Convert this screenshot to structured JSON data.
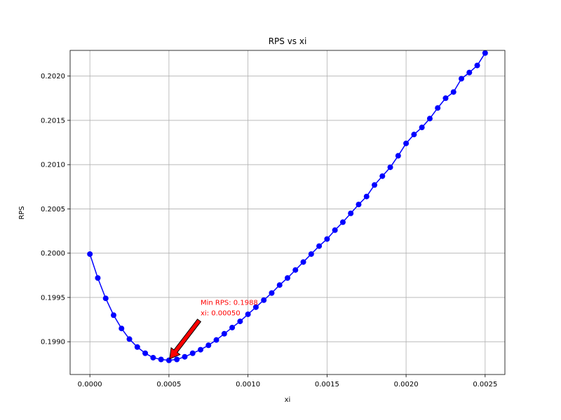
{
  "chart_data": {
    "type": "line",
    "title": "RPS vs xi",
    "xlabel": "xi",
    "ylabel": "RPS",
    "xlim": [
      -0.000125,
      0.002625
    ],
    "ylim": [
      0.19863,
      0.20229
    ],
    "xticks": [
      0.0,
      0.0005,
      0.001,
      0.0015,
      0.002,
      0.0025
    ],
    "xtick_labels": [
      "0.0000",
      "0.0005",
      "0.0010",
      "0.0015",
      "0.0020",
      "0.0025"
    ],
    "yticks": [
      0.199,
      0.1995,
      0.2,
      0.2005,
      0.201,
      0.2015,
      0.202
    ],
    "ytick_labels": [
      "0.1990",
      "0.1995",
      "0.2000",
      "0.2005",
      "0.2010",
      "0.2015",
      "0.2020"
    ],
    "grid": true,
    "series": [
      {
        "color": "#0000ff",
        "marker": "circle",
        "x": [
          0.0,
          5e-05,
          0.0001,
          0.00015,
          0.0002,
          0.00025,
          0.0003,
          0.00035,
          0.0004,
          0.00045,
          0.0005,
          0.00055,
          0.0006,
          0.00065,
          0.0007,
          0.00075,
          0.0008,
          0.00085,
          0.0009,
          0.00095,
          0.001,
          0.00105,
          0.0011,
          0.00115,
          0.0012,
          0.00125,
          0.0013,
          0.00135,
          0.0014,
          0.00145,
          0.0015,
          0.00155,
          0.0016,
          0.00165,
          0.0017,
          0.00175,
          0.0018,
          0.00185,
          0.0019,
          0.00195,
          0.002,
          0.00205,
          0.0021,
          0.00215,
          0.0022,
          0.00225,
          0.0023,
          0.00235,
          0.0024,
          0.00245,
          0.0025
        ],
        "y": [
          0.19999,
          0.19972,
          0.19949,
          0.1993,
          0.19915,
          0.19903,
          0.19894,
          0.19887,
          0.19882,
          0.1988,
          0.19879,
          0.1988,
          0.19883,
          0.19887,
          0.19891,
          0.19896,
          0.19902,
          0.19909,
          0.19916,
          0.19923,
          0.19931,
          0.19939,
          0.19947,
          0.19955,
          0.19964,
          0.19972,
          0.19981,
          0.1999,
          0.19999,
          0.20008,
          0.20016,
          0.20026,
          0.20035,
          0.20045,
          0.20055,
          0.20064,
          0.20077,
          0.20087,
          0.20097,
          0.2011,
          0.20124,
          0.20134,
          0.20142,
          0.20152,
          0.20164,
          0.20175,
          0.20182,
          0.20197,
          0.20204,
          0.20212,
          0.20226
        ]
      }
    ],
    "annotation": {
      "line1": "Min RPS: 0.1988",
      "line2": "xi: 0.00050",
      "color": "#ff0000",
      "point_x": 0.0005,
      "point_y": 0.19879,
      "text_x": 0.0007,
      "text_y": 0.19932,
      "arrow_color": "#ff0000"
    }
  }
}
